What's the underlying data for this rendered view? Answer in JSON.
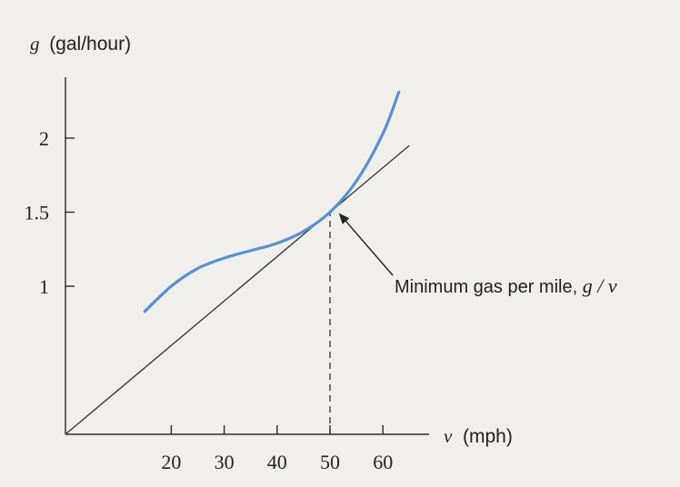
{
  "chart_data": {
    "type": "line",
    "y_axis": {
      "var": "g",
      "unit": "(gal/hour)",
      "ticks": [
        1,
        1.5,
        2
      ],
      "range": [
        0,
        2.5
      ]
    },
    "x_axis": {
      "var": "v",
      "unit": "(mph)",
      "ticks": [
        20,
        30,
        40,
        50,
        60
      ],
      "range": [
        0,
        70
      ]
    },
    "series": [
      {
        "color": "#5b8fd0",
        "x": [
          15,
          20,
          25,
          30,
          35,
          40,
          45,
          50,
          55,
          60,
          63
        ],
        "y": [
          0.83,
          1.0,
          1.12,
          1.19,
          1.24,
          1.29,
          1.37,
          1.5,
          1.71,
          2.03,
          2.31
        ]
      }
    ],
    "tangent_line": {
      "color": "#3a3a3a",
      "from": [
        0,
        0
      ],
      "to": [
        65,
        1.95
      ]
    },
    "reference_line": {
      "x": 50,
      "style": "dashed",
      "y_top": 1.5
    },
    "annotation": {
      "text": "Minimum gas per mile, ",
      "math": "g / v",
      "points_to": [
        50,
        1.5
      ]
    }
  }
}
